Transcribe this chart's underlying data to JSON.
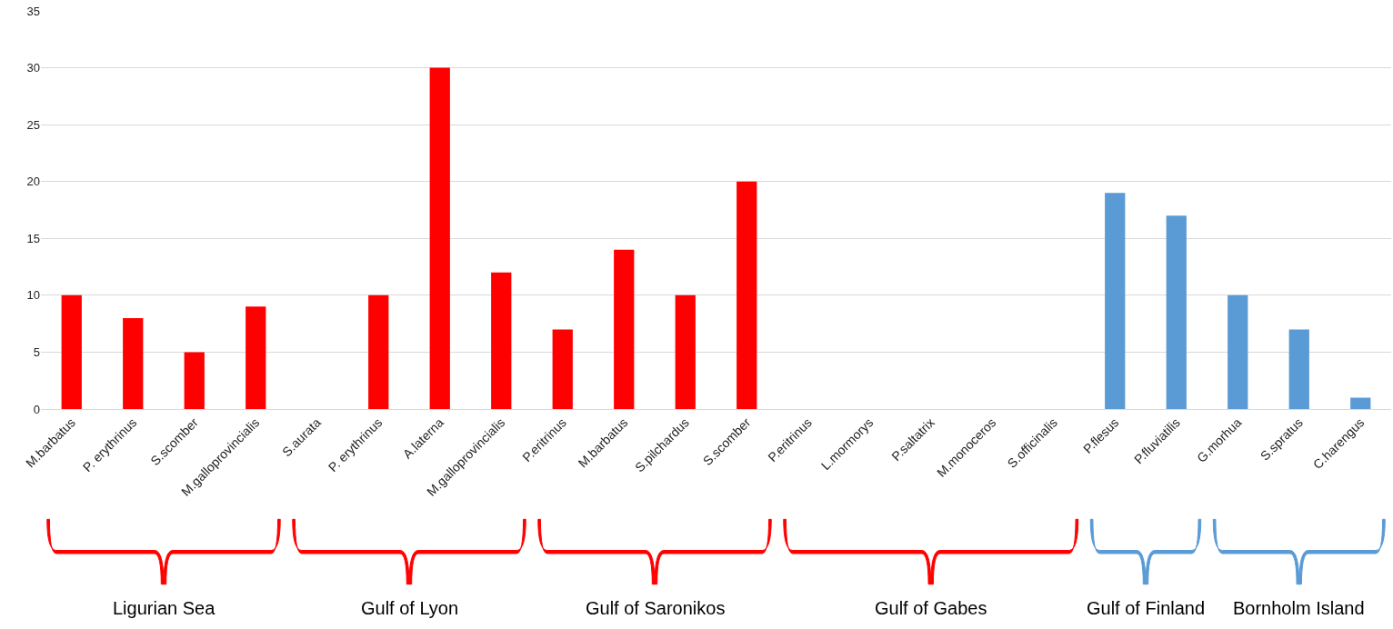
{
  "chart_data": {
    "type": "bar",
    "categories": [
      "M.barbatus",
      "P. erythrinus",
      "S.scomber",
      "M.galloprovincialis",
      "S.aurata",
      "P. erythrinus",
      "A.laterna",
      "M.galloprovincialis",
      "P.eritrinus",
      "M.barbatus",
      "S.pilchardus",
      "S.scomber",
      "P.eritrinus",
      "L.mormorys",
      "P.saltatrix",
      "M.monoceros",
      "S.officinalis",
      "P.flesus",
      "P.fluviatilis",
      "G.morhua",
      "S.spratus",
      "C.harengus"
    ],
    "values": [
      10,
      8,
      5,
      9,
      0,
      10,
      30,
      12,
      7,
      14,
      10,
      20,
      0,
      0,
      0,
      0,
      0,
      19,
      17,
      10,
      7,
      1
    ],
    "colors": [
      "#ff0000",
      "#ff0000",
      "#ff0000",
      "#ff0000",
      "#ff0000",
      "#ff0000",
      "#ff0000",
      "#ff0000",
      "#ff0000",
      "#ff0000",
      "#ff0000",
      "#ff0000",
      "#ff0000",
      "#ff0000",
      "#ff0000",
      "#ff0000",
      "#ff0000",
      "#5b9bd5",
      "#5b9bd5",
      "#5b9bd5",
      "#5b9bd5",
      "#5b9bd5"
    ],
    "ylim": [
      0,
      35
    ],
    "yticks": [
      0,
      5,
      10,
      15,
      20,
      25,
      30,
      35
    ],
    "grid": "y",
    "legend": false,
    "annotations": [
      "Ligurian Sea",
      "Gulf of Lyon",
      "Gulf of Saronikos",
      "Gulf of Gabes",
      "Gulf of Finland",
      "Bornholm Island"
    ]
  }
}
